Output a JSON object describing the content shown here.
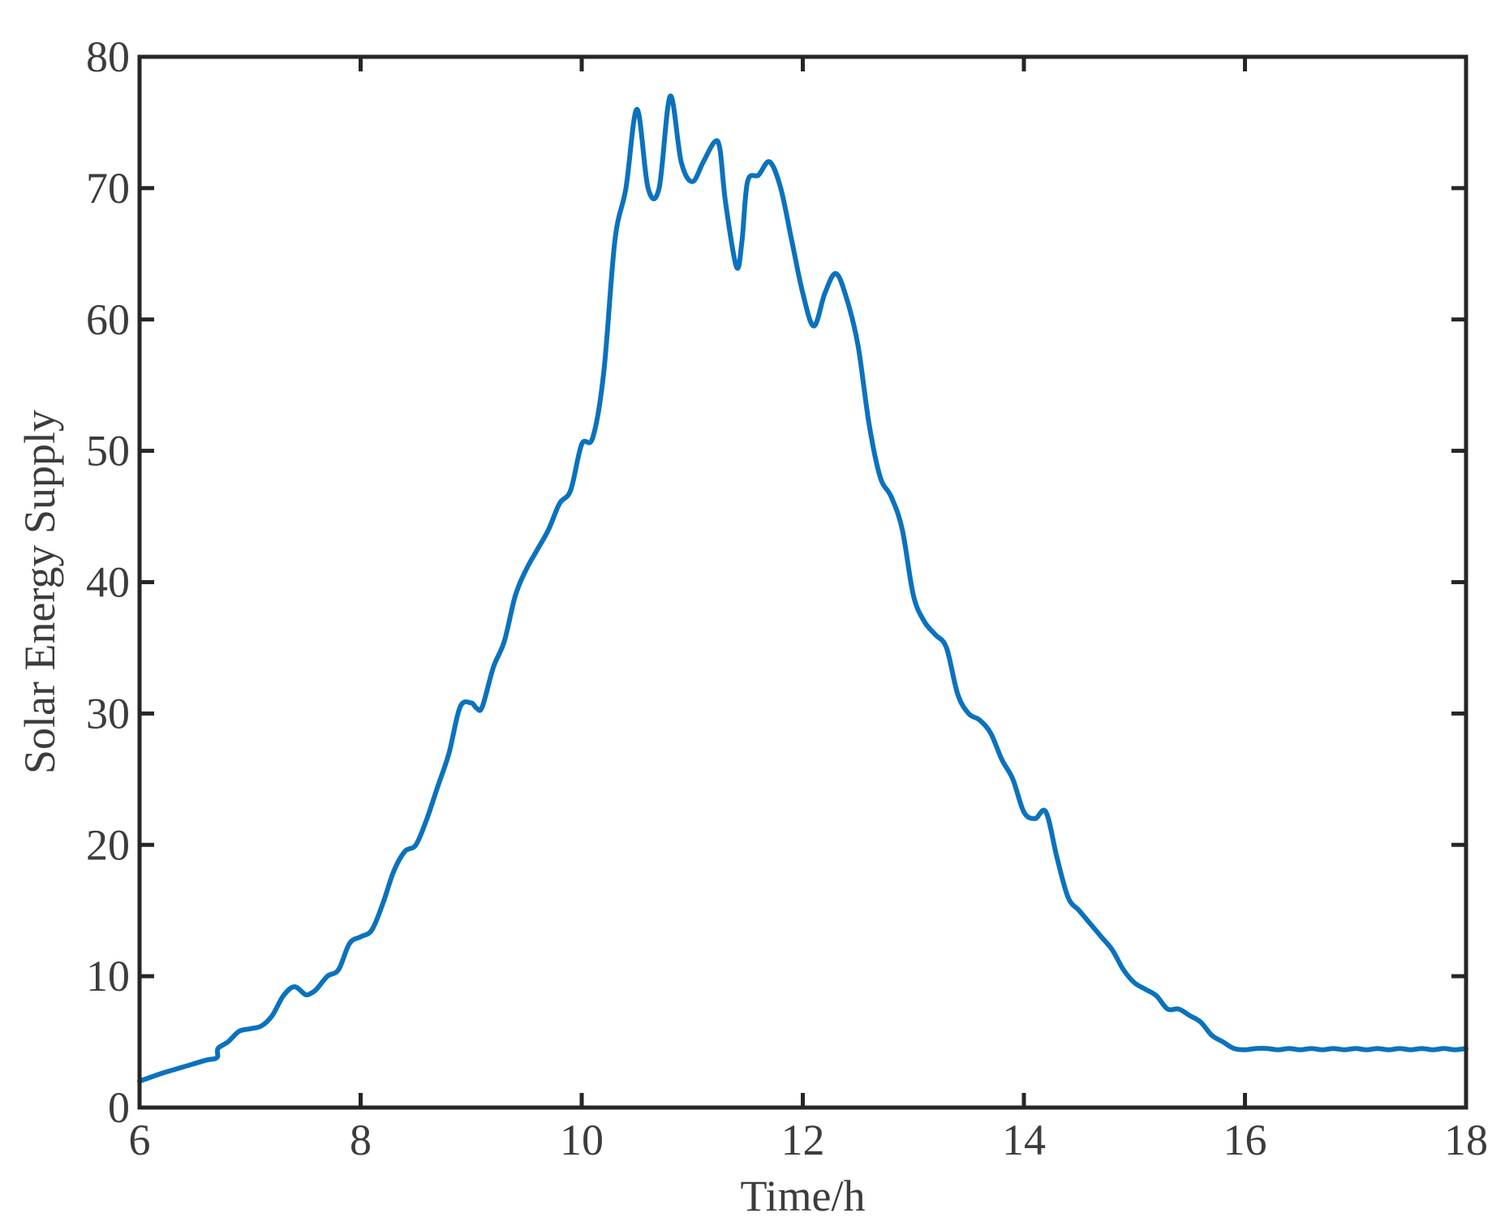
{
  "chart_data": {
    "type": "line",
    "title": "",
    "xlabel": "Time/h",
    "ylabel": "Solar Energy Supply",
    "xlim": [
      6,
      18
    ],
    "ylim": [
      0,
      80
    ],
    "xticks": [
      6,
      8,
      10,
      12,
      14,
      16,
      18
    ],
    "yticks": [
      0,
      10,
      20,
      30,
      40,
      50,
      60,
      70,
      80
    ],
    "grid": false,
    "legend": false,
    "colors": {
      "line": "#0b72bd",
      "axes": "#262626",
      "text": "#3c3c3c"
    },
    "series": [
      {
        "x": [
          6.0,
          6.2,
          6.4,
          6.6,
          6.7,
          6.71,
          6.8,
          6.9,
          7.0,
          7.1,
          7.2,
          7.3,
          7.4,
          7.5,
          7.55,
          7.6,
          7.7,
          7.8,
          7.9,
          8.0,
          8.1,
          8.2,
          8.3,
          8.4,
          8.5,
          8.6,
          8.7,
          8.8,
          8.9,
          9.0,
          9.05,
          9.1,
          9.2,
          9.3,
          9.4,
          9.5,
          9.6,
          9.7,
          9.8,
          9.9,
          10.0,
          10.1,
          10.2,
          10.3,
          10.4,
          10.5,
          10.6,
          10.7,
          10.8,
          10.9,
          11.0,
          11.1,
          11.2,
          11.25,
          11.3,
          11.4,
          11.45,
          11.5,
          11.6,
          11.7,
          11.8,
          11.9,
          12.0,
          12.1,
          12.2,
          12.3,
          12.4,
          12.5,
          12.6,
          12.7,
          12.8,
          12.9,
          13.0,
          13.1,
          13.2,
          13.3,
          13.4,
          13.5,
          13.6,
          13.7,
          13.8,
          13.9,
          14.0,
          14.1,
          14.2,
          14.3,
          14.4,
          14.5,
          14.6,
          14.7,
          14.8,
          14.9,
          15.0,
          15.1,
          15.2,
          15.3,
          15.4,
          15.5,
          15.6,
          15.7,
          15.8,
          15.9,
          16.0,
          16.1,
          16.2,
          16.3,
          16.4,
          16.5,
          16.6,
          16.7,
          16.8,
          16.9,
          17.0,
          17.1,
          17.2,
          17.3,
          17.4,
          17.5,
          17.6,
          17.7,
          17.8,
          17.9,
          18.0
        ],
        "values": [
          2.0,
          2.6,
          3.1,
          3.6,
          3.8,
          4.5,
          5.0,
          5.8,
          6.0,
          6.2,
          7.0,
          8.5,
          9.2,
          8.6,
          8.7,
          9.0,
          10.0,
          10.5,
          12.5,
          13.0,
          13.5,
          15.5,
          18.0,
          19.5,
          20.0,
          22.0,
          24.5,
          27.0,
          30.5,
          30.8,
          30.4,
          30.5,
          33.5,
          35.5,
          39.0,
          41.0,
          42.5,
          44.0,
          46.0,
          47.0,
          50.5,
          51.0,
          56.0,
          66.0,
          70.0,
          76.0,
          70.0,
          70.0,
          77.0,
          72.0,
          70.5,
          72.0,
          73.5,
          73.0,
          69.0,
          64.0,
          66.0,
          70.5,
          71.0,
          72.0,
          70.0,
          66.0,
          62.0,
          59.5,
          62.0,
          63.5,
          61.5,
          58.0,
          52.0,
          48.0,
          46.5,
          44.0,
          39.0,
          37.0,
          36.0,
          35.0,
          31.5,
          30.0,
          29.5,
          28.5,
          26.5,
          25.0,
          22.5,
          22.0,
          22.5,
          19.0,
          16.0,
          15.0,
          14.0,
          13.0,
          12.0,
          10.5,
          9.5,
          9.0,
          8.5,
          7.5,
          7.5,
          7.0,
          6.5,
          5.5,
          5.0,
          4.5,
          4.4,
          4.5,
          4.5,
          4.4,
          4.5,
          4.4,
          4.5,
          4.4,
          4.5,
          4.4,
          4.5,
          4.4,
          4.5,
          4.4,
          4.5,
          4.4,
          4.5,
          4.4,
          4.5,
          4.4,
          4.5
        ]
      }
    ]
  }
}
